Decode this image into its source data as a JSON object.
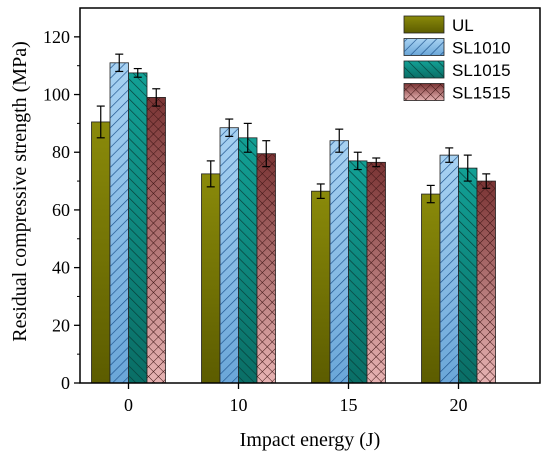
{
  "chart_data": {
    "type": "bar",
    "xlabel": "Impact energy (J)",
    "ylabel": "Residual compressive strength (MPa)",
    "categories": [
      "0",
      "10",
      "15",
      "20"
    ],
    "ylim": [
      0,
      130
    ],
    "yticks": [
      0,
      20,
      40,
      60,
      80,
      100,
      120
    ],
    "grid": false,
    "legend_position": "top-right",
    "series": [
      {
        "name": "UL",
        "values": [
          90.5,
          72.5,
          66.5,
          65.5
        ],
        "errors": [
          5.5,
          4.5,
          2.5,
          3.0
        ],
        "color": "#7a7a00",
        "pattern": "solid"
      },
      {
        "name": "SL1010",
        "values": [
          111.0,
          88.5,
          84.0,
          79.0
        ],
        "errors": [
          3.0,
          3.0,
          4.0,
          2.5
        ],
        "color": "#8ec0ea",
        "pattern": "diagonal-forward"
      },
      {
        "name": "SL1015",
        "values": [
          107.5,
          85.0,
          77.0,
          74.5
        ],
        "errors": [
          1.5,
          5.0,
          3.0,
          4.5
        ],
        "color": "#0e8a80",
        "pattern": "diagonal-back"
      },
      {
        "name": "SL1515",
        "values": [
          99.0,
          79.5,
          76.5,
          70.0
        ],
        "errors": [
          3.0,
          4.5,
          1.5,
          2.5
        ],
        "color": "#c98383",
        "pattern": "crosshatch"
      }
    ]
  }
}
